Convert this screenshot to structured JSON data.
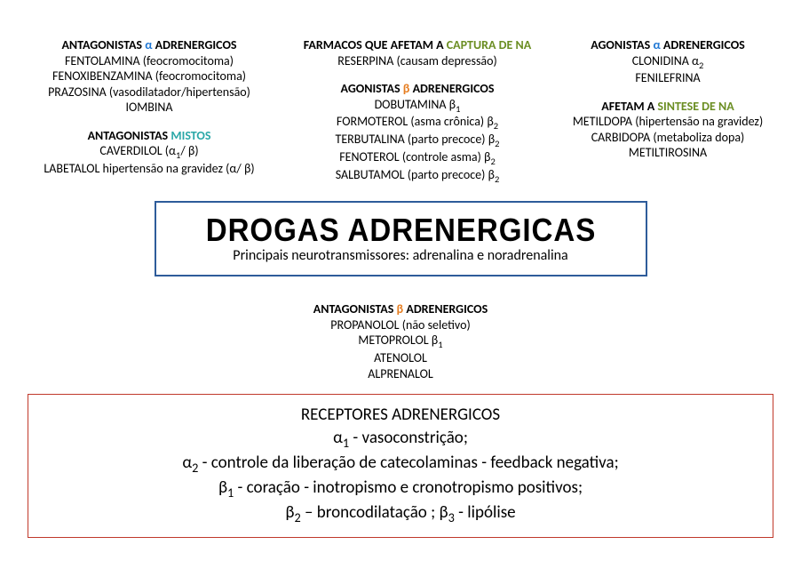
{
  "topLeft": {
    "antagAlpha": {
      "title_pre": "ANTAGONISTAS ",
      "title_accent": "α",
      "title_post": " ADRENERGICOS",
      "lines": [
        "FENTOLAMINA (feocromocitoma)",
        "FENOXIBENZAMINA (feocromocitoma)",
        "PRAZOSINA (vasodilatador/hipertensão)",
        "IOMBINA"
      ]
    },
    "antagMistos": {
      "title_pre": "ANTAGONISTAS ",
      "title_accent": "MISTOS",
      "line1_pre": "CAVERDILOL (α",
      "line1_sub": "1",
      "line1_post": "/ β)",
      "line2_pre": "LABETALOL hipertensão na gravidez (α",
      "line2_mid": "/ β)",
      "line2_post": ""
    }
  },
  "topMid": {
    "captura": {
      "title_pre": "FARMACOS QUE AFETAM A ",
      "title_accent": "CAPTURA DE NA",
      "line": "RESERPINA (causam depressão)"
    },
    "agonBeta": {
      "title_pre": "AGONISTAS ",
      "title_accent": "β",
      "title_post": " ADRENERGICOS",
      "l1_pre": "DOBUTAMINA β",
      "l1_sub": "1",
      "l2_pre": "FORMOTEROL (asma crônica) β",
      "l2_sub": "2",
      "l3_pre": "TERBUTALINA (parto precoce) β",
      "l3_sub": "2",
      "l4_pre": "FENOTEROL (controle asma) β",
      "l4_sub": "2",
      "l5_pre": "SALBUTAMOL (parto precoce) β",
      "l5_sub": "2"
    }
  },
  "topRight": {
    "agonAlpha": {
      "title_pre": "AGONISTAS ",
      "title_accent": "α",
      "title_post": " ADRENERGICOS",
      "l1_pre": "CLONIDINA α",
      "l1_sub": "2",
      "l2": "FENILEFRINA"
    },
    "sintese": {
      "title_pre": "AFETAM A ",
      "title_accent": "SINTESE DE NA",
      "lines": [
        "METILDOPA (hipertensão na gravidez)",
        "CARBIDOPA (metaboliza dopa)",
        "METILTIROSINA"
      ]
    }
  },
  "mainBox": {
    "title": "DROGAS ADRENERGICAS",
    "sub": "Principais neurotransmissores:  adrenalina e noradrenalina"
  },
  "antagBeta": {
    "title_pre": "ANTAGONISTAS ",
    "title_accent": "β",
    "title_post": " ADRENERGICOS",
    "lines": [
      "PROPANOLOL (não seletivo)"
    ],
    "l2_pre": "METOPROLOL β",
    "l2_sub": "1",
    "l3": "ATENOLOL",
    "l4": "ALPRENALOL"
  },
  "receptors": {
    "title": "RECEPTORES ADRENERGICOS",
    "r1_pre": "α",
    "r1_sub": "1",
    "r1_post": " -  vasoconstrição;",
    "r2_pre": "α",
    "r2_sub": "2",
    "r2_post": " -  controle da liberação de catecolaminas - feedback negativa;",
    "r3_pre": "β",
    "r3_sub": "1",
    "r3_post": " - coração -  inotropismo e cronotropismo positivos;",
    "r4a_pre": "β",
    "r4a_sub": "2",
    "r4a_post": " – broncodilatação ; ",
    "r4b_pre": "β",
    "r4b_sub": "3",
    "r4b_post": " - lipólise"
  },
  "colors": {
    "blue": "#1f77d4",
    "teal": "#2ba8a8",
    "orange": "#e67e22",
    "green": "#6b8e23",
    "mainBorder": "#2e5c9a",
    "receptorsBorder": "#c0392b"
  }
}
